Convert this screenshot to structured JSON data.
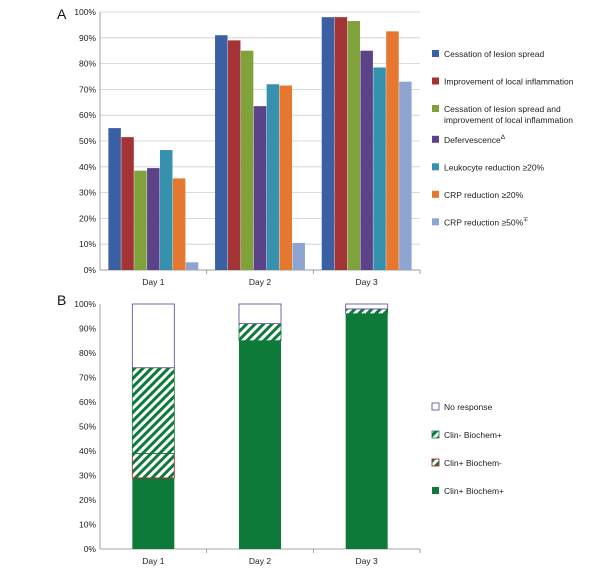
{
  "panel_a_label": "A",
  "panel_b_label": "B",
  "colors": {
    "cessation": "#3b5fa3",
    "improvement": "#a33335",
    "cessation_and_improvement": "#7fa23c",
    "defervescence": "#5c4289",
    "leukocyte": "#3691ae",
    "crp20": "#e5772f",
    "crp50": "#8ea5d2",
    "green": "#0d7a3a",
    "no_response_border": "#6a55a0",
    "clin_plus_border": "#a33335",
    "grid": "#cfcfcf",
    "axis": "#8a8a8a"
  },
  "chart_data": [
    {
      "type": "bar",
      "title": "",
      "xlabel": "",
      "ylabel": "",
      "ylim": [
        0,
        100
      ],
      "y_tick_step": 10,
      "y_tick_suffix": "%",
      "grid": true,
      "legend_position": "right",
      "categories": [
        "Day 1",
        "Day 2",
        "Day 3"
      ],
      "series": [
        {
          "name": "Cessation of lesion spread",
          "color_key": "cessation",
          "values": [
            55,
            91,
            98
          ]
        },
        {
          "name": "Improvement of local inflammation",
          "color_key": "improvement",
          "values": [
            51.5,
            89,
            98
          ]
        },
        {
          "name": "Cessation of lesion spread and improvement of local inflammation",
          "legend_lines": [
            "Cessation of lesion spread and",
            "improvement of local inflammation"
          ],
          "color_key": "cessation_and_improvement",
          "values": [
            38.5,
            85,
            96.5
          ]
        },
        {
          "name": "Defervescence",
          "legend_sup": "Δ",
          "color_key": "defervescence",
          "values": [
            39.5,
            63.5,
            85
          ]
        },
        {
          "name": "Leukocyte reduction ≥20%",
          "color_key": "leukocyte",
          "values": [
            46.5,
            72,
            78.5
          ]
        },
        {
          "name": "CRP reduction ≥20%",
          "color_key": "crp20",
          "values": [
            35.5,
            71.5,
            92.5
          ]
        },
        {
          "name": "CRP reduction ≥50%",
          "legend_sup": "∓",
          "color_key": "crp50",
          "values": [
            3,
            10.5,
            73
          ]
        }
      ]
    },
    {
      "type": "bar",
      "stacked": true,
      "title": "",
      "xlabel": "",
      "ylabel": "",
      "ylim": [
        0,
        100
      ],
      "y_tick_step": 10,
      "y_tick_suffix": "%",
      "grid": false,
      "legend_position": "right",
      "categories": [
        "Day 1",
        "Day 2",
        "Day 3"
      ],
      "series": [
        {
          "name": "Clin+  Biochem+",
          "style": "solid",
          "values": [
            29,
            85,
            96
          ]
        },
        {
          "name": "Clin+  Biochem-",
          "style": "hatch-red",
          "values": [
            10,
            0,
            0
          ]
        },
        {
          "name": "Clin-   Biochem+",
          "style": "hatch-green",
          "values": [
            35,
            7,
            2
          ]
        },
        {
          "name": "No response",
          "style": "empty",
          "values": [
            26,
            8,
            2
          ]
        }
      ],
      "legend_order": [
        3,
        2,
        1,
        0
      ]
    }
  ]
}
